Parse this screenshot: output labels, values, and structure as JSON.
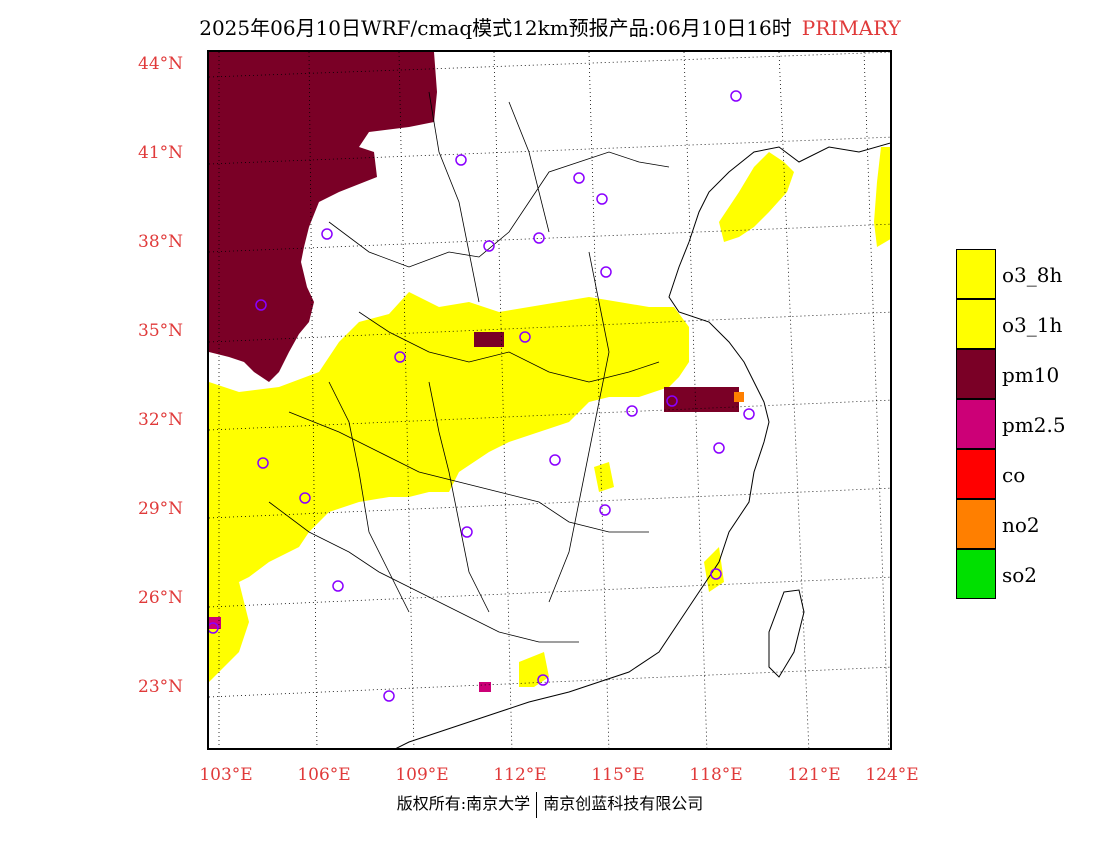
{
  "title": {
    "text": "2025年06月10日WRF/cmaq模式12km预报产品:06月10日16时",
    "mode": "PRIMARY"
  },
  "axes": {
    "lat_labels": [
      "44°N",
      "41°N",
      "38°N",
      "35°N",
      "32°N",
      "29°N",
      "26°N",
      "23°N"
    ],
    "lon_labels": [
      "103°E",
      "106°E",
      "109°E",
      "112°E",
      "115°E",
      "118°E",
      "121°E",
      "124°E"
    ]
  },
  "legend": [
    {
      "label": "o3_8h",
      "color": "#ffff00"
    },
    {
      "label": "o3_1h",
      "color": "#ffff00"
    },
    {
      "label": "pm10",
      "color": "#7a0026"
    },
    {
      "label": "pm2.5",
      "color": "#cc0077"
    },
    {
      "label": "co",
      "color": "#ff0000"
    },
    {
      "label": "no2",
      "color": "#ff7f00"
    },
    {
      "label": "so2",
      "color": "#00e000"
    }
  ],
  "footer": {
    "left": "版权所有:南京大学",
    "right": "南京创蓝科技有限公司"
  }
}
